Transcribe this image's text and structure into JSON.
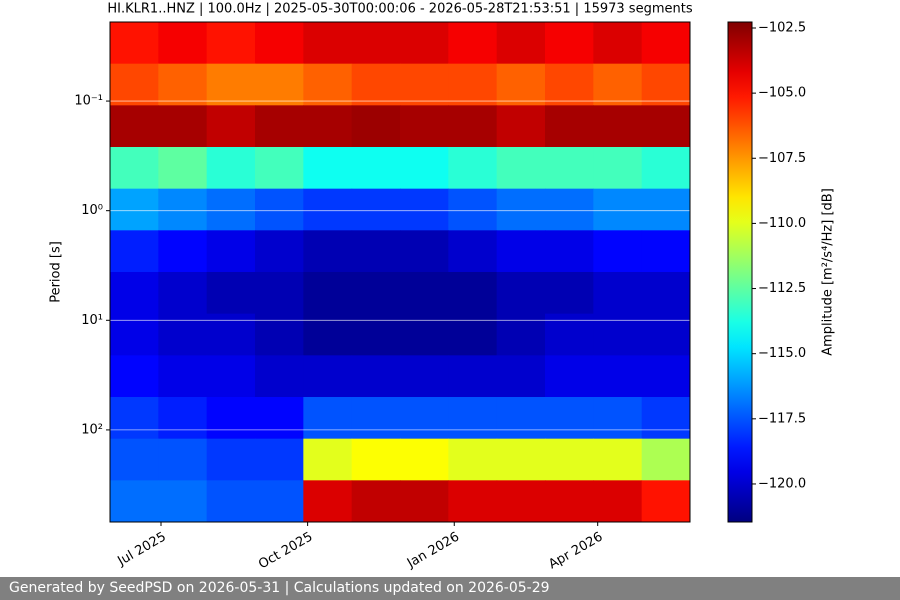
{
  "chart_data": {
    "type": "spectrogram",
    "title": "HI.KLR1..HNZ | 100.0Hz | 2025-05-30T00:00:06 - 2026-05-28T21:53:51 | 15973 segments",
    "y_label": "Period [s]",
    "colorbar_label": "Amplitude [m²/s⁴/Hz] [dB]",
    "colormap": "jet",
    "xlim": [
      "2025-05-30T00:00:06",
      "2026-05-28T21:53:51"
    ],
    "xticks": [
      {
        "value": "2025-07",
        "label": "Jul 2025"
      },
      {
        "value": "2025-10",
        "label": "Oct 2025"
      },
      {
        "value": "2026-01",
        "label": "Jan 2026"
      },
      {
        "value": "2026-04",
        "label": "Apr 2026"
      }
    ],
    "ylim": [
      0.019,
      692
    ],
    "y_log": true,
    "y_inverted": true,
    "yticks": [
      {
        "value": 0.1,
        "label": "10⁻¹"
      },
      {
        "value": 1,
        "label": "10⁰"
      },
      {
        "value": 10,
        "label": "10¹"
      },
      {
        "value": 100,
        "label": "10²"
      }
    ],
    "grid": true,
    "clim": [
      -121.46,
      -102.27
    ],
    "cticks": [
      {
        "value": -102.5,
        "label": "−102.5"
      },
      {
        "value": -105,
        "label": "−105.0"
      },
      {
        "value": -107.5,
        "label": "−107.5"
      },
      {
        "value": -110,
        "label": "−110.0"
      },
      {
        "value": -112.5,
        "label": "−112.5"
      },
      {
        "value": -115,
        "label": "−115.0"
      },
      {
        "value": -117.5,
        "label": "−117.5"
      },
      {
        "value": -120,
        "label": "−120.0"
      }
    ],
    "z": [
      [
        -105,
        -104.5,
        -105,
        -104.5,
        -104,
        -104,
        -104,
        -104.5,
        -104,
        -104.5,
        -104,
        -104.5
      ],
      [
        -106,
        -106.5,
        -107,
        -107,
        -106.5,
        -106,
        -106,
        -106,
        -106.5,
        -106,
        -106.5,
        -106
      ],
      [
        -103,
        -103,
        -103.5,
        -103,
        -103,
        -102.8,
        -103,
        -103,
        -103.5,
        -103,
        -103,
        -103
      ],
      [
        -113,
        -112.5,
        -113.5,
        -113,
        -114,
        -114,
        -114,
        -113.5,
        -113,
        -113,
        -113,
        -113.5
      ],
      [
        -116,
        -116.5,
        -117,
        -117.5,
        -118,
        -118,
        -118,
        -117.5,
        -117,
        -117,
        -116.5,
        -116.5
      ],
      [
        -118.5,
        -119,
        -119.5,
        -120,
        -120.5,
        -120.5,
        -120.5,
        -120,
        -119.5,
        -119.5,
        -119,
        -119
      ],
      [
        -119.5,
        -120,
        -120.5,
        -120.5,
        -121,
        -121,
        -121,
        -121,
        -120.5,
        -120.5,
        -120,
        -120
      ],
      [
        -119.5,
        -120,
        -120,
        -120.5,
        -121,
        -121,
        -121,
        -121,
        -120.5,
        -120,
        -120,
        -120
      ],
      [
        -119,
        -119.5,
        -119.5,
        -120,
        -120,
        -120,
        -120,
        -120,
        -120,
        -119.5,
        -119.5,
        -119.5
      ],
      [
        -118,
        -118.5,
        -119,
        -119,
        -117.5,
        -117.5,
        -117.5,
        -117.5,
        -117.5,
        -117.5,
        -117.5,
        -118
      ],
      [
        -117.5,
        -117.5,
        -118,
        -118,
        -110,
        -109.5,
        -109.5,
        -110,
        -110,
        -110,
        -110,
        -111
      ],
      [
        -117,
        -117,
        -117.5,
        -117.5,
        -104,
        -103.5,
        -103.5,
        -104,
        -104,
        -104,
        -104,
        -105
      ]
    ]
  },
  "footer": "Generated by SeedPSD on 2026-05-31 | Calculations updated on 2026-05-29"
}
